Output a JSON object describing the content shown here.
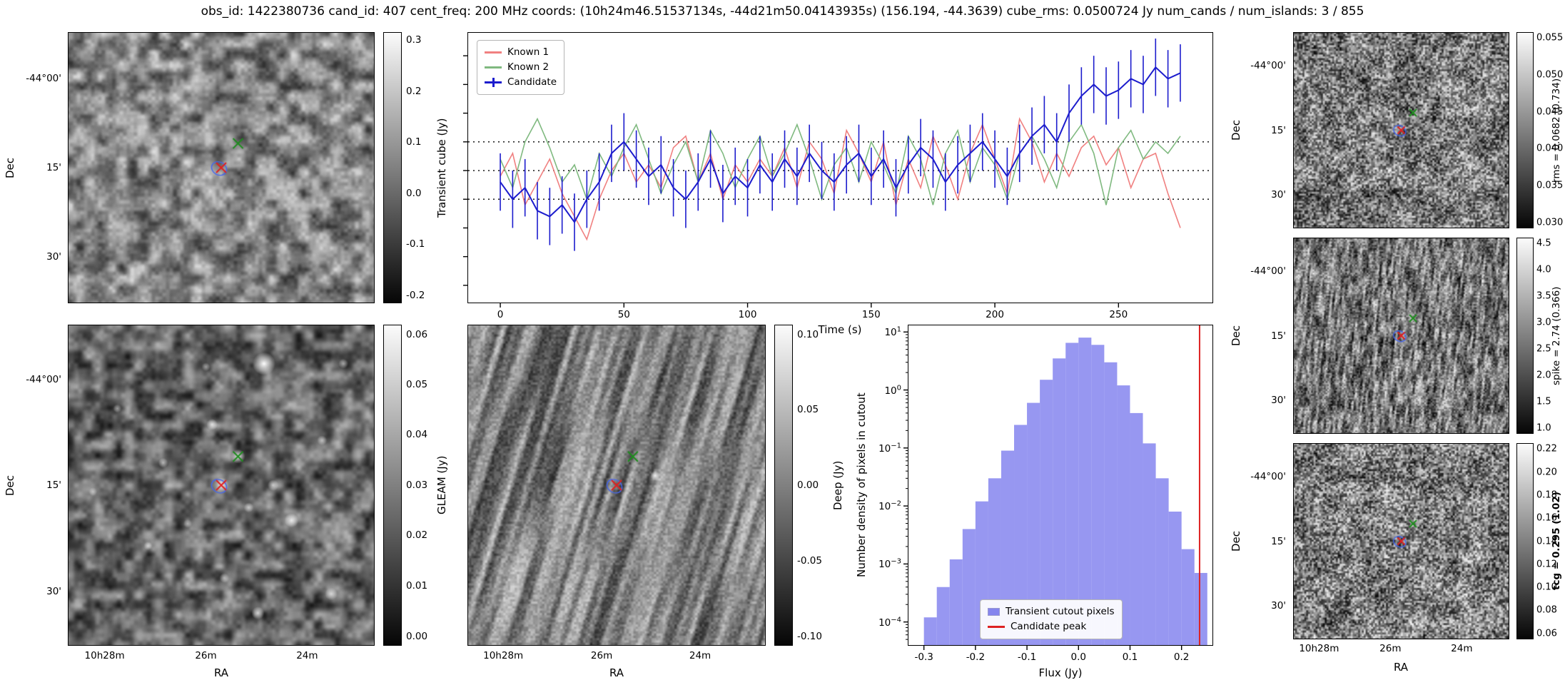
{
  "title": "obs_id: 1422380736 cand_id: 407 cent_freq: 200 MHz coords: (10h24m46.51537134s, -44d21m50.04143935s) (156.194, -44.3639) cube_rms: 0.0500724 Jy num_cands / num_islands: 3 / 855",
  "axes": {
    "dec_label": "Dec",
    "ra_label": "RA",
    "dec_ticks": [
      "-44°00'",
      "15'",
      "30'"
    ],
    "ra_ticks": [
      "10h28m",
      "26m",
      "24m"
    ]
  },
  "panels": {
    "transient": {
      "cbar_label": "Transient cube (Jy)",
      "cbar_ticks": [
        "0.3",
        "0.2",
        "0.1",
        "0.0",
        "-0.1",
        "-0.2"
      ]
    },
    "gleam": {
      "cbar_label": "GLEAM (Jy)",
      "cbar_ticks": [
        "0.06",
        "0.05",
        "0.04",
        "0.03",
        "0.02",
        "0.01",
        "0.00"
      ]
    },
    "deep": {
      "cbar_label": "Deep (Jy)",
      "cbar_ticks": [
        "0.10",
        "0.05",
        "0.00",
        "-0.05",
        "-0.10"
      ]
    },
    "rms": {
      "cbar_label": "rms = 0.0682 (0.734)",
      "cbar_ticks": [
        "0.055",
        "0.050",
        "0.045",
        "0.040",
        "0.035",
        "0.030"
      ]
    },
    "spike": {
      "cbar_label": "spike = 2.74 (0.366)",
      "cbar_ticks": [
        "4.5",
        "4.0",
        "3.5",
        "3.0",
        "2.5",
        "2.0",
        "1.5",
        "1.0"
      ]
    },
    "tcg": {
      "cbar_label": "tcg = 0.295 (1.02)",
      "cbar_ticks": [
        "0.22",
        "0.20",
        "0.18",
        "0.16",
        "0.14",
        "0.12",
        "0.10",
        "0.08",
        "0.06"
      ]
    }
  },
  "chart_data": [
    {
      "type": "line",
      "xlabel": "Time (s)",
      "ylabel": "",
      "xlim": [
        -13,
        288
      ],
      "ylim": [
        -0.23,
        0.24
      ],
      "xticks": [
        0,
        50,
        100,
        150,
        200,
        250
      ],
      "hlines": [
        -0.05,
        0.0,
        0.05
      ],
      "legend_position": "upper left",
      "x": [
        0,
        5,
        10,
        15,
        20,
        25,
        30,
        35,
        40,
        45,
        50,
        55,
        60,
        65,
        70,
        75,
        80,
        85,
        90,
        95,
        100,
        105,
        110,
        115,
        120,
        125,
        130,
        135,
        140,
        145,
        150,
        155,
        160,
        165,
        170,
        175,
        180,
        185,
        190,
        195,
        200,
        205,
        210,
        215,
        220,
        225,
        230,
        235,
        240,
        245,
        250,
        255,
        260,
        265,
        270,
        275
      ],
      "series": [
        {
          "name": "Known 1",
          "color": "#f08080",
          "values": [
            -0.01,
            0.03,
            -0.06,
            -0.02,
            0.02,
            -0.04,
            -0.08,
            -0.12,
            -0.05,
            0.0,
            0.03,
            -0.02,
            0.01,
            -0.03,
            0.04,
            0.06,
            -0.02,
            0.03,
            -0.05,
            0.01,
            -0.02,
            0.02,
            -0.01,
            0.04,
            -0.03,
            0.05,
            0.02,
            -0.04,
            0.07,
            0.03,
            -0.02,
            0.05,
            -0.06,
            0.02,
            -0.03,
            0.06,
            0.01,
            -0.05,
            0.03,
            0.08,
            0.02,
            -0.04,
            0.09,
            0.05,
            -0.02,
            0.03,
            -0.01,
            0.04,
            0.06,
            0.01,
            0.04,
            -0.03,
            0.02,
            0.03,
            -0.04,
            -0.1
          ]
        },
        {
          "name": "Known 2",
          "color": "#7fb97f",
          "values": [
            0.02,
            -0.03,
            0.05,
            0.09,
            0.04,
            -0.02,
            0.01,
            -0.05,
            0.03,
            -0.01,
            0.04,
            0.08,
            0.02,
            -0.04,
            0.01,
            0.05,
            -0.02,
            0.07,
            0.03,
            -0.03,
            0.02,
            0.06,
            -0.01,
            0.03,
            0.08,
            0.02,
            -0.05,
            0.01,
            0.04,
            -0.02,
            0.05,
            0.01,
            -0.04,
            0.06,
            0.02,
            -0.06,
            0.03,
            0.07,
            -0.02,
            0.04,
            0.01,
            -0.05,
            0.03,
            0.06,
            0.02,
            -0.03,
            0.05,
            0.08,
            0.03,
            -0.06,
            0.04,
            0.07,
            0.02,
            0.05,
            0.03,
            0.06
          ]
        },
        {
          "name": "Candidate",
          "color": "#1c1ccd",
          "yerr": 0.05,
          "values": [
            -0.02,
            -0.05,
            -0.03,
            -0.07,
            -0.08,
            -0.06,
            -0.09,
            -0.05,
            -0.02,
            0.03,
            0.05,
            0.02,
            -0.01,
            0.01,
            -0.03,
            -0.05,
            -0.02,
            0.02,
            -0.04,
            -0.01,
            -0.03,
            0.01,
            -0.02,
            0.02,
            -0.01,
            0.03,
            0.0,
            -0.02,
            0.01,
            0.03,
            -0.01,
            0.02,
            -0.03,
            0.01,
            0.04,
            0.02,
            -0.02,
            0.01,
            0.03,
            0.05,
            0.02,
            -0.01,
            0.03,
            0.06,
            0.08,
            0.05,
            0.1,
            0.13,
            0.15,
            0.13,
            0.14,
            0.16,
            0.15,
            0.18,
            0.16,
            0.17
          ]
        }
      ]
    },
    {
      "type": "bar",
      "xlabel": "Flux (Jy)",
      "ylabel": "Number density of pixels in cutout",
      "yscale": "log",
      "xlim": [
        -0.33,
        0.26
      ],
      "ylim": [
        4e-05,
        13
      ],
      "xticks": [
        -0.3,
        -0.2,
        -0.1,
        0.0,
        0.1,
        0.2
      ],
      "ytick_exponents": [
        1,
        0,
        -1,
        -2,
        -3,
        -4
      ],
      "bin_start": -0.3,
      "bin_width": 0.025,
      "densities": [
        0.00012,
        0.0004,
        0.0012,
        0.004,
        0.012,
        0.03,
        0.09,
        0.25,
        0.6,
        1.5,
        3.5,
        6.5,
        8.0,
        6.0,
        3.0,
        1.2,
        0.4,
        0.12,
        0.03,
        0.008,
        0.0018,
        0.0007
      ],
      "candidate_peak": 0.235,
      "bar_color": "#8585ee",
      "line_color": "#dd2222",
      "legend": [
        "Transient cutout pixels",
        "Candidate peak"
      ]
    }
  ]
}
